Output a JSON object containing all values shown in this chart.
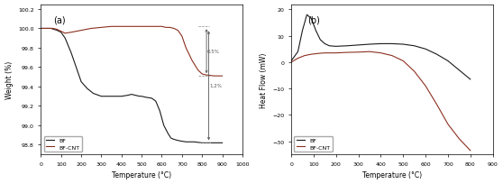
{
  "fig_width": 5.58,
  "fig_height": 2.05,
  "dpi": 100,
  "bg_color": "#ffffff",
  "tga": {
    "title": "(a)",
    "xlabel": "Temperature (°C)",
    "ylabel": "Weight (%)",
    "xlim": [
      0,
      1000
    ],
    "ylim": [
      98.7,
      100.25
    ],
    "yticks": [
      98.8,
      99.0,
      99.2,
      99.4,
      99.6,
      99.8,
      100.0,
      100.2
    ],
    "xticks": [
      0,
      100,
      200,
      300,
      400,
      500,
      600,
      700,
      800,
      900,
      1000
    ],
    "bf_color": "#1a1a1a",
    "bfcnt_color": "#8b3020",
    "legend_labels": [
      "BF",
      "BF-CNT"
    ],
    "annotation_05": "0.5%",
    "annotation_12": "1.2%"
  },
  "dsc": {
    "title": "(b)",
    "xlabel": "Temperature (°C)",
    "ylabel": "Heat Flow (mW)",
    "xlim": [
      0,
      900
    ],
    "ylim": [
      -35,
      22
    ],
    "yticks": [
      -30,
      -20,
      -10,
      0,
      10,
      20
    ],
    "xticks": [
      0,
      100,
      200,
      300,
      400,
      500,
      600,
      700,
      800,
      900
    ],
    "bf_color": "#1a1a1a",
    "bfcnt_color": "#8b3020",
    "legend_labels": [
      "BF",
      "BF-CNT"
    ]
  }
}
